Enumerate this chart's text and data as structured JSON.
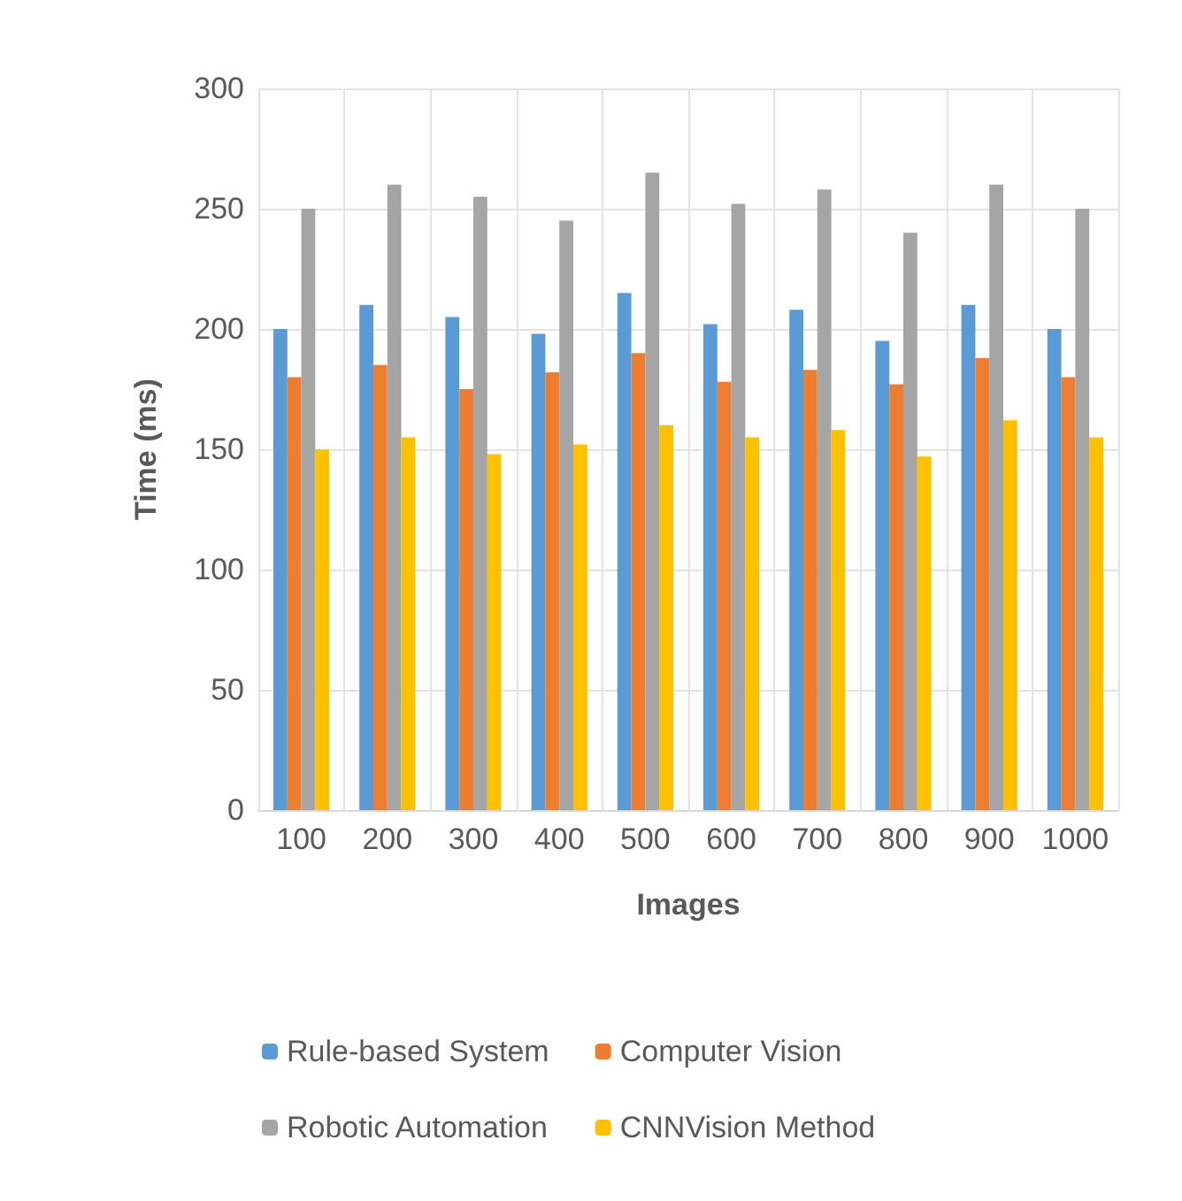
{
  "chart_data": {
    "type": "bar",
    "xlabel": "Images",
    "ylabel": "Time (ms)",
    "categories": [
      "100",
      "200",
      "300",
      "400",
      "500",
      "600",
      "700",
      "800",
      "900",
      "1000"
    ],
    "series": [
      {
        "name": "Rule-based System",
        "color": "#5b9bd5",
        "values": [
          200,
          210,
          205,
          198,
          215,
          202,
          208,
          195,
          210,
          200
        ]
      },
      {
        "name": "Computer Vision",
        "color": "#ed7d31",
        "values": [
          180,
          185,
          175,
          182,
          190,
          178,
          183,
          177,
          188,
          180
        ]
      },
      {
        "name": "Robotic Automation",
        "color": "#a5a5a5",
        "values": [
          250,
          260,
          255,
          245,
          265,
          252,
          258,
          240,
          260,
          250
        ]
      },
      {
        "name": "CNNVision Method",
        "color": "#ffc000",
        "values": [
          150,
          155,
          148,
          152,
          160,
          155,
          158,
          147,
          162,
          155
        ]
      }
    ],
    "ylim": [
      0,
      300
    ],
    "yticks": [
      0,
      50,
      100,
      150,
      200,
      250,
      300
    ],
    "grid": true,
    "legend": "bottom"
  }
}
